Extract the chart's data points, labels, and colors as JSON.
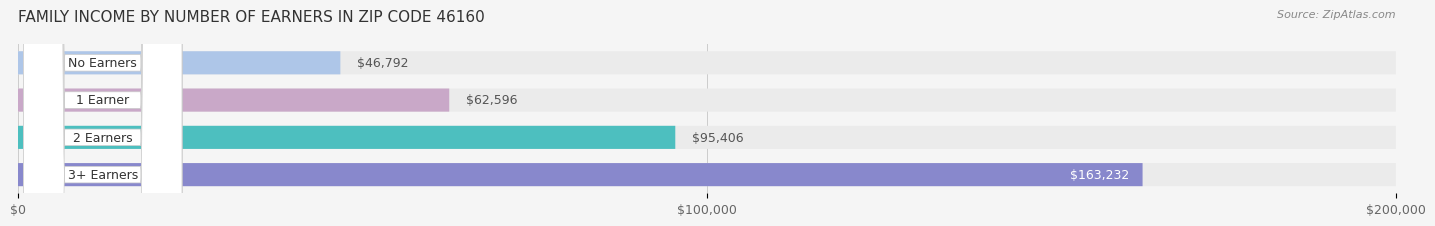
{
  "title": "FAMILY INCOME BY NUMBER OF EARNERS IN ZIP CODE 46160",
  "source": "Source: ZipAtlas.com",
  "categories": [
    "No Earners",
    "1 Earner",
    "2 Earners",
    "3+ Earners"
  ],
  "values": [
    46792,
    62596,
    95406,
    163232
  ],
  "value_labels": [
    "$46,792",
    "$62,596",
    "$95,406",
    "$163,232"
  ],
  "bar_colors": [
    "#aec6e8",
    "#c9a8c8",
    "#4dbfbf",
    "#8888cc"
  ],
  "bar_edge_colors": [
    "#aec6e8",
    "#c9a8c8",
    "#4dbfbf",
    "#8888cc"
  ],
  "xlim": [
    0,
    200000
  ],
  "xtick_values": [
    0,
    100000,
    200000
  ],
  "xtick_labels": [
    "$0",
    "$100,000",
    "$200,000"
  ],
  "background_color": "#f5f5f5",
  "bar_background_color": "#ebebeb",
  "title_fontsize": 11,
  "source_fontsize": 8,
  "label_fontsize": 9,
  "tick_fontsize": 9
}
